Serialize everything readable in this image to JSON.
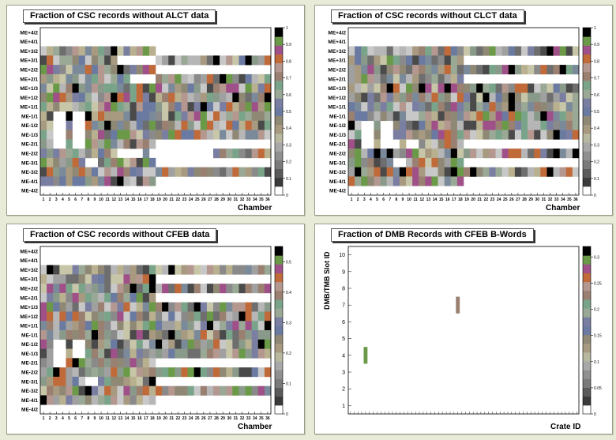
{
  "chart_data": [
    {
      "type": "heatmap",
      "title": "Fraction of CSC records without ALCT data",
      "xlabel": "Chamber",
      "ylabel": "",
      "x_ticks": [
        "1",
        "2",
        "3",
        "4",
        "5",
        "6",
        "7",
        "8",
        "9",
        "10",
        "11",
        "12",
        "13",
        "14",
        "15",
        "16",
        "17",
        "18",
        "19",
        "20",
        "21",
        "22",
        "23",
        "24",
        "25",
        "26",
        "27",
        "28",
        "29",
        "30",
        "31",
        "32",
        "33",
        "34",
        "35",
        "36"
      ],
      "y_labels": [
        "ME+4/2",
        "ME+4/1",
        "ME+3/2",
        "ME+3/1",
        "ME+2/2",
        "ME+2/1",
        "ME+1/3",
        "ME+1/2",
        "ME+1/1",
        "ME-1/1",
        "ME-1/2",
        "ME-1/3",
        "ME-2/1",
        "ME-2/2",
        "ME-3/1",
        "ME-3/2",
        "ME-4/1",
        "ME-4/2"
      ],
      "z_ticks": [
        "0",
        "0.1",
        "0.2",
        "0.3",
        "0.4",
        "0.5",
        "0.6",
        "0.7",
        "0.8",
        "0.9",
        "1"
      ],
      "zlim": [
        0,
        1
      ],
      "seed": 11,
      "rows": [
        {
          "label": "ME+3/2",
          "fill": [
            1,
            18
          ],
          "gaps": []
        },
        {
          "label": "ME+3/1",
          "fill": [
            1,
            36
          ],
          "gaps": [
            13,
            14,
            15,
            16,
            17,
            18
          ]
        },
        {
          "label": "ME+2/2",
          "fill": [
            1,
            18
          ],
          "gaps": []
        },
        {
          "label": "ME+2/1",
          "fill": [
            1,
            36
          ],
          "gaps": [
            15,
            16,
            17,
            18
          ]
        },
        {
          "label": "ME+1/3",
          "fill": [
            1,
            36
          ],
          "gaps": []
        },
        {
          "label": "ME+1/2",
          "fill": [
            1,
            36
          ],
          "gaps": []
        },
        {
          "label": "ME+1/1",
          "fill": [
            1,
            36
          ],
          "gaps": []
        },
        {
          "label": "ME-1/1",
          "fill": [
            1,
            36
          ],
          "gaps": [
            3,
            4,
            6,
            7
          ]
        },
        {
          "label": "ME-1/2",
          "fill": [
            1,
            36
          ],
          "gaps": [
            3,
            4,
            6,
            7
          ]
        },
        {
          "label": "ME-1/3",
          "fill": [
            1,
            36
          ],
          "gaps": [
            3,
            4,
            6,
            7
          ]
        },
        {
          "label": "ME-2/1",
          "fill": [
            1,
            18
          ],
          "gaps": [
            3,
            4,
            6,
            7
          ]
        },
        {
          "label": "ME-2/2",
          "fill": [
            1,
            36
          ],
          "gaps": [
            13,
            14,
            15,
            16,
            18,
            19,
            20,
            21,
            22,
            23,
            24,
            25,
            26,
            27
          ]
        },
        {
          "label": "ME-3/1",
          "fill": [
            1,
            18
          ],
          "gaps": [
            8,
            9
          ]
        },
        {
          "label": "ME-3/2",
          "fill": [
            1,
            36
          ],
          "gaps": []
        },
        {
          "label": "ME-4/1",
          "fill": [
            1,
            18
          ],
          "gaps": []
        }
      ]
    },
    {
      "type": "heatmap",
      "title": "Fraction of CSC records without CLCT data",
      "xlabel": "Chamber",
      "ylabel": "",
      "x_ticks": [
        "1",
        "2",
        "3",
        "4",
        "5",
        "6",
        "7",
        "8",
        "9",
        "10",
        "11",
        "12",
        "13",
        "14",
        "15",
        "16",
        "17",
        "18",
        "19",
        "20",
        "21",
        "22",
        "23",
        "24",
        "25",
        "26",
        "27",
        "28",
        "29",
        "30",
        "31",
        "32",
        "33",
        "34",
        "35",
        "36"
      ],
      "y_labels": [
        "ME+4/2",
        "ME+4/1",
        "ME+3/2",
        "ME+3/1",
        "ME+2/2",
        "ME+2/1",
        "ME+1/3",
        "ME+1/2",
        "ME+1/1",
        "ME-1/1",
        "ME-1/2",
        "ME-1/3",
        "ME-2/1",
        "ME-2/2",
        "ME-3/1",
        "ME-3/2",
        "ME-4/1",
        "ME-4/2"
      ],
      "z_ticks": [
        "0",
        "0.1",
        "0.2",
        "0.3",
        "0.4",
        "0.5",
        "0.6",
        "0.7",
        "0.8",
        "0.9",
        "1"
      ],
      "zlim": [
        0,
        1
      ],
      "seed": 23,
      "rows": [
        {
          "label": "ME+3/2",
          "fill": [
            1,
            36
          ],
          "gaps": []
        },
        {
          "label": "ME+3/1",
          "fill": [
            1,
            18
          ],
          "gaps": []
        },
        {
          "label": "ME+2/2",
          "fill": [
            1,
            36
          ],
          "gaps": []
        },
        {
          "label": "ME+2/1",
          "fill": [
            1,
            18
          ],
          "gaps": []
        },
        {
          "label": "ME+1/3",
          "fill": [
            1,
            36
          ],
          "gaps": []
        },
        {
          "label": "ME+1/2",
          "fill": [
            1,
            36
          ],
          "gaps": []
        },
        {
          "label": "ME+1/1",
          "fill": [
            1,
            36
          ],
          "gaps": []
        },
        {
          "label": "ME-1/1",
          "fill": [
            1,
            36
          ],
          "gaps": []
        },
        {
          "label": "ME-1/2",
          "fill": [
            1,
            36
          ],
          "gaps": [
            3,
            4,
            6,
            7
          ]
        },
        {
          "label": "ME-1/3",
          "fill": [
            1,
            36
          ],
          "gaps": [
            3,
            4,
            6,
            7
          ]
        },
        {
          "label": "ME-2/1",
          "fill": [
            1,
            18
          ],
          "gaps": [
            3,
            4,
            6,
            7,
            8,
            10,
            11
          ]
        },
        {
          "label": "ME-2/2",
          "fill": [
            1,
            36
          ],
          "gaps": []
        },
        {
          "label": "ME-3/1",
          "fill": [
            1,
            18
          ],
          "gaps": [
            8,
            9
          ]
        },
        {
          "label": "ME-3/2",
          "fill": [
            1,
            36
          ],
          "gaps": []
        },
        {
          "label": "ME-4/1",
          "fill": [
            1,
            18
          ],
          "gaps": []
        }
      ]
    },
    {
      "type": "heatmap",
      "title": "Fraction of CSC records without CFEB data",
      "xlabel": "Chamber",
      "ylabel": "",
      "x_ticks": [
        "1",
        "2",
        "3",
        "4",
        "5",
        "6",
        "7",
        "8",
        "9",
        "10",
        "11",
        "12",
        "13",
        "14",
        "15",
        "16",
        "17",
        "18",
        "19",
        "20",
        "21",
        "22",
        "23",
        "24",
        "25",
        "26",
        "27",
        "28",
        "29",
        "30",
        "31",
        "32",
        "33",
        "34",
        "35",
        "36"
      ],
      "y_labels": [
        "ME+4/2",
        "ME+4/1",
        "ME+3/2",
        "ME+3/1",
        "ME+2/2",
        "ME+2/1",
        "ME+1/3",
        "ME+1/2",
        "ME+1/1",
        "ME-1/1",
        "ME-1/2",
        "ME-1/3",
        "ME-2/1",
        "ME-2/2",
        "ME-3/1",
        "ME-3/2",
        "ME-4/1",
        "ME-4/2"
      ],
      "z_ticks": [
        "0",
        "0.1",
        "0.2",
        "0.3",
        "0.4",
        "0.5"
      ],
      "zlim": [
        0,
        0.55
      ],
      "seed": 37,
      "rows": [
        {
          "label": "ME+3/2",
          "fill": [
            1,
            36
          ],
          "gaps": []
        },
        {
          "label": "ME+3/1",
          "fill": [
            1,
            18
          ],
          "gaps": []
        },
        {
          "label": "ME+2/2",
          "fill": [
            1,
            36
          ],
          "gaps": []
        },
        {
          "label": "ME+2/1",
          "fill": [
            1,
            18
          ],
          "gaps": []
        },
        {
          "label": "ME+1/3",
          "fill": [
            1,
            36
          ],
          "gaps": []
        },
        {
          "label": "ME+1/2",
          "fill": [
            1,
            36
          ],
          "gaps": []
        },
        {
          "label": "ME+1/1",
          "fill": [
            1,
            36
          ],
          "gaps": []
        },
        {
          "label": "ME-1/1",
          "fill": [
            1,
            36
          ],
          "gaps": []
        },
        {
          "label": "ME-1/2",
          "fill": [
            1,
            36
          ],
          "gaps": [
            3,
            4,
            6,
            7
          ]
        },
        {
          "label": "ME-1/3",
          "fill": [
            1,
            36
          ],
          "gaps": [
            3,
            4,
            6,
            7
          ]
        },
        {
          "label": "ME-2/1",
          "fill": [
            1,
            18
          ],
          "gaps": [
            3,
            4
          ]
        },
        {
          "label": "ME-2/2",
          "fill": [
            1,
            36
          ],
          "gaps": []
        },
        {
          "label": "ME-3/1",
          "fill": [
            1,
            18
          ],
          "gaps": [
            8,
            9
          ]
        },
        {
          "label": "ME-3/2",
          "fill": [
            1,
            36
          ],
          "gaps": []
        },
        {
          "label": "ME-4/1",
          "fill": [
            1,
            18
          ],
          "gaps": []
        }
      ]
    },
    {
      "type": "heatmap",
      "title": "Fraction of DMB Records with CFEB B-Words",
      "xlabel": "Crate ID",
      "ylabel": "DMB/TMB Slot ID",
      "y_ticks": [
        "1",
        "2",
        "3",
        "4",
        "5",
        "6",
        "7",
        "8",
        "9",
        "10"
      ],
      "ylim": [
        0.5,
        10.5
      ],
      "x_count": 60,
      "z_ticks": [
        "0",
        "0.05",
        "0.1",
        "0.15",
        "0.2",
        "0.25",
        "0.3"
      ],
      "zlim": [
        0,
        0.32
      ],
      "cells": [
        {
          "x": 5,
          "y": 4,
          "z": 0.31
        },
        {
          "x": 29,
          "y": 7,
          "z": 0.23
        }
      ]
    }
  ]
}
